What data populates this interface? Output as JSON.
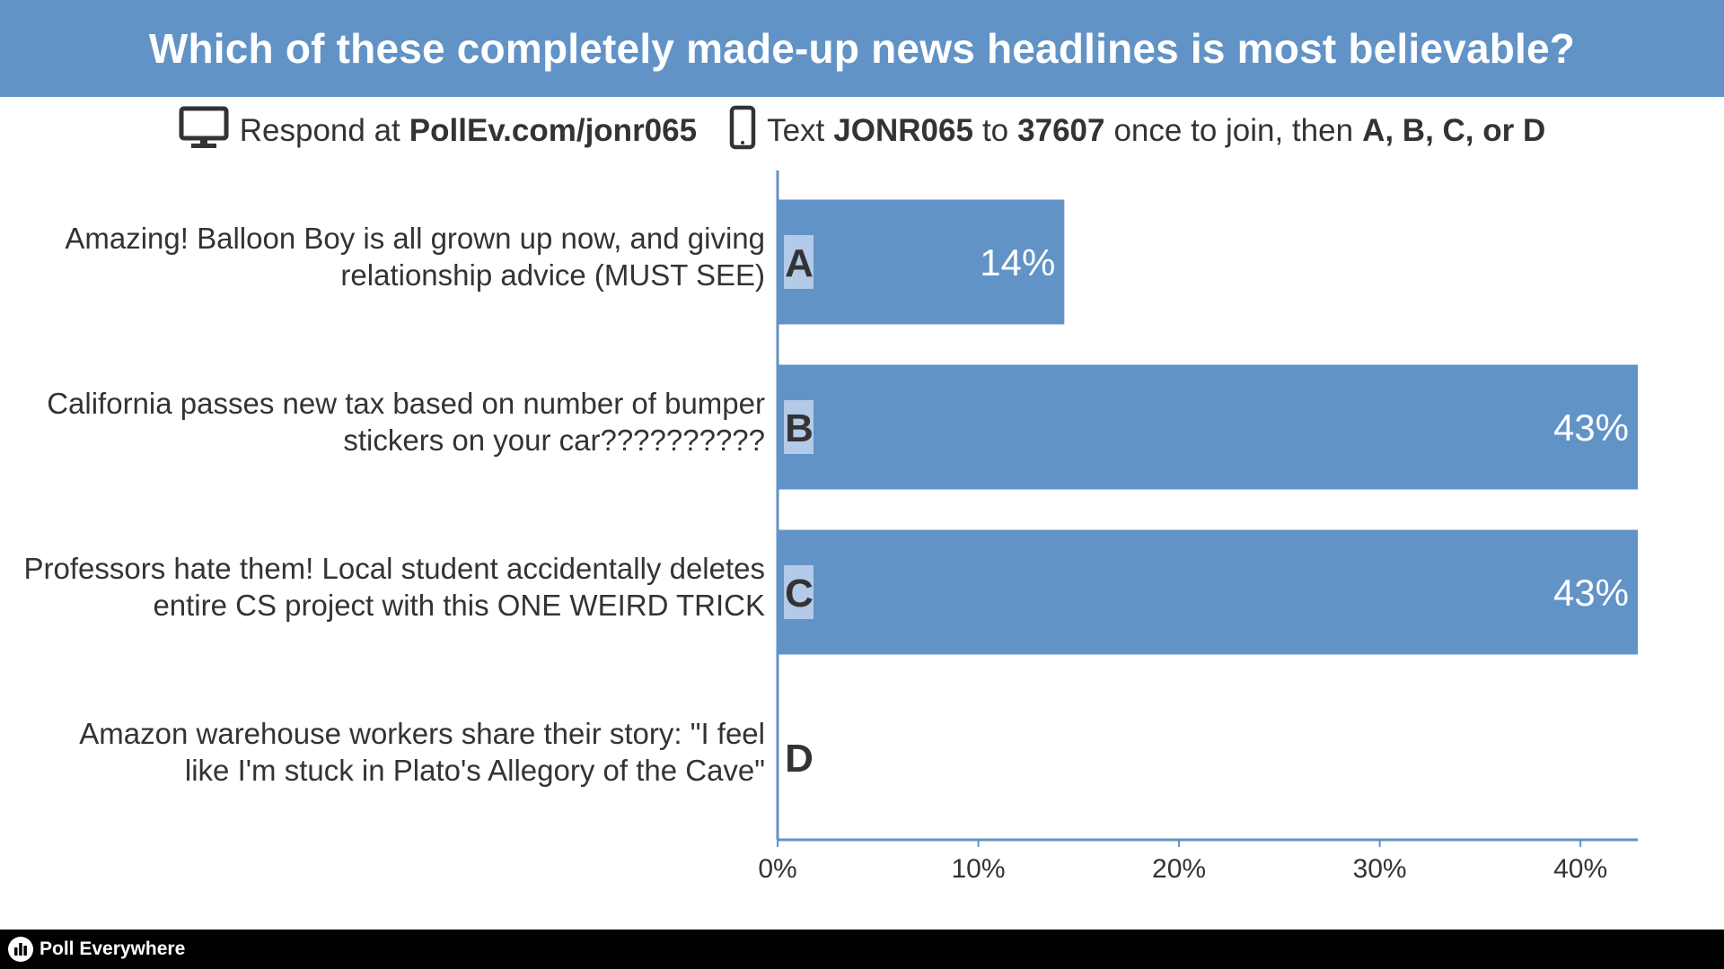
{
  "header": {
    "title": "Which of these completely made-up news headlines is most believable?"
  },
  "instructions": {
    "web_prefix": "Respond at",
    "web_url": "PollEv.com/jonr065",
    "text_prefix": "Text",
    "code": "JONR065",
    "to": "to",
    "number": "37607",
    "join_text": "once to join, then",
    "options": "A, B, C, or D",
    "web_icon": "monitor-icon",
    "text_icon": "phone-icon"
  },
  "chart_data": {
    "type": "bar",
    "orientation": "horizontal",
    "categories": [
      "Amazing! Balloon Boy is all grown up now, and giving relationship advice (MUST SEE)",
      "California passes new tax based on number of bumper stickers on your car??????????",
      "Professors hate them! Local student accidentally deletes entire CS project with this ONE WEIRD TRICK",
      "Amazon warehouse workers share their story: \"I feel like I'm stuck in Plato's Allegory of the Cave\""
    ],
    "category_lines": [
      [
        "Amazing! Balloon Boy is all grown up now, and giving",
        "relationship advice (MUST SEE)"
      ],
      [
        "California passes new tax based on number of bumper",
        "stickers on your car??????????"
      ],
      [
        "Professors hate them! Local student accidentally deletes",
        "entire CS project with this ONE WEIRD TRICK"
      ],
      [
        "Amazon warehouse workers share their story: \"I feel",
        "like I'm stuck in Plato's Allegory of the Cave\""
      ]
    ],
    "letters": [
      "A",
      "B",
      "C",
      "D"
    ],
    "values": [
      14.2857,
      42.8571,
      42.8571,
      0
    ],
    "value_labels": [
      "14%",
      "43%",
      "43%",
      ""
    ],
    "xlim": [
      0,
      42.8571
    ],
    "xticks": [
      0,
      10,
      20,
      30,
      40
    ],
    "xtick_labels": [
      "0%",
      "10%",
      "20%",
      "30%",
      "40%"
    ],
    "bar_color": "#6193c7",
    "letter_bg_color": "#b3cae8",
    "axis_color": "#6193c7",
    "text_color": "#333333",
    "grid": false
  },
  "footer": {
    "brand": "Poll Everywhere",
    "brand_icon": "poll-everywhere-logo-icon"
  }
}
